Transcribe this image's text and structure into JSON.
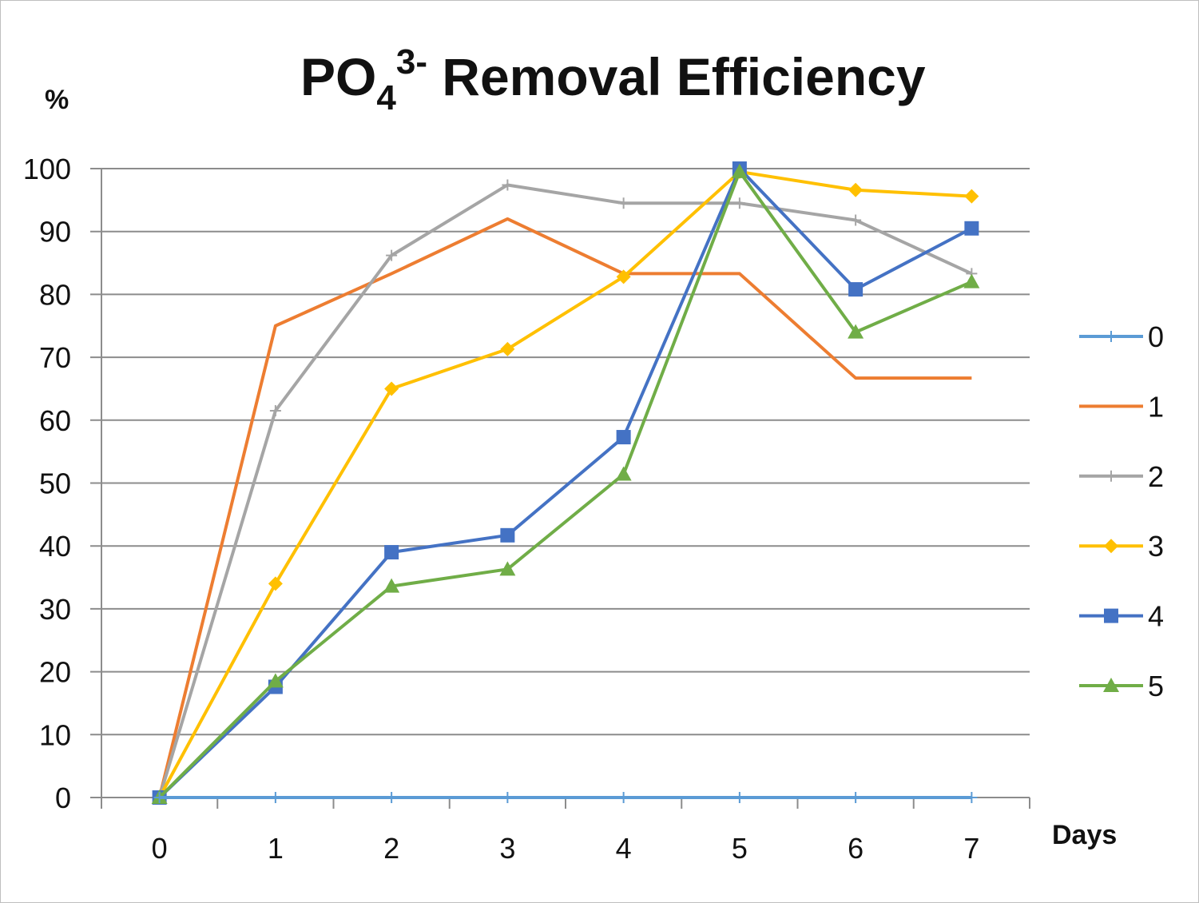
{
  "chart_data": {
    "type": "line",
    "title": "PO4 3- Removal Efficiency",
    "title_parts": {
      "main": "PO",
      "sub": "4",
      "sup": "3-",
      "rest": " Removal Efficiency"
    },
    "xlabel": "Days",
    "ylabel": "%",
    "ylim": [
      0,
      100
    ],
    "yticks": [
      0,
      10,
      20,
      30,
      40,
      50,
      60,
      70,
      80,
      90,
      100
    ],
    "categories": [
      "0",
      "1",
      "2",
      "3",
      "4",
      "5",
      "6",
      "7"
    ],
    "grid": true,
    "legend_position": "right",
    "series": [
      {
        "name": "0",
        "color": "#5b9bd5",
        "marker": "plus",
        "values": [
          0,
          0,
          0,
          0,
          0,
          0,
          0,
          0
        ]
      },
      {
        "name": "1",
        "color": "#ed7d31",
        "marker": "none",
        "values": [
          0,
          75,
          83.3,
          92,
          83.3,
          83.3,
          66.7,
          66.7
        ]
      },
      {
        "name": "2",
        "color": "#a5a5a5",
        "marker": "plus",
        "values": [
          0,
          61.5,
          86.2,
          97.4,
          94.5,
          94.5,
          91.8,
          83.3
        ]
      },
      {
        "name": "3",
        "color": "#ffc000",
        "marker": "diamond",
        "values": [
          0,
          34,
          65,
          71.3,
          82.8,
          99.5,
          96.6,
          95.6
        ]
      },
      {
        "name": "4",
        "color": "#4472c4",
        "marker": "square",
        "values": [
          0,
          17.6,
          39,
          41.7,
          57.3,
          100,
          80.8,
          90.5
        ]
      },
      {
        "name": "5",
        "color": "#70ad47",
        "marker": "triangle",
        "values": [
          0,
          18.5,
          33.6,
          36.3,
          51.4,
          99.5,
          74,
          82
        ]
      }
    ]
  }
}
